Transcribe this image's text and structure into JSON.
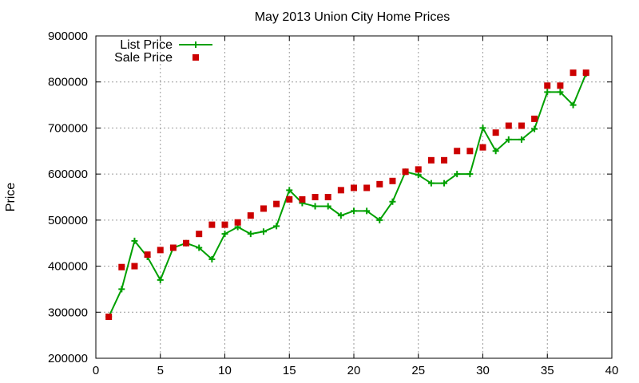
{
  "chart_data": {
    "type": "line",
    "title": "May 2013 Union City Home Prices",
    "xlabel": "",
    "ylabel": "Price",
    "xlim": [
      0,
      40
    ],
    "ylim": [
      200000,
      900000
    ],
    "xticks": [
      0,
      5,
      10,
      15,
      20,
      25,
      30,
      35,
      40
    ],
    "yticks": [
      200000,
      300000,
      400000,
      500000,
      600000,
      700000,
      800000,
      900000
    ],
    "grid": true,
    "legend_position": "top-left",
    "x": [
      1,
      2,
      3,
      4,
      5,
      6,
      7,
      8,
      9,
      10,
      11,
      12,
      13,
      14,
      15,
      16,
      17,
      18,
      19,
      20,
      21,
      22,
      23,
      24,
      25,
      26,
      27,
      28,
      29,
      30,
      31,
      32,
      33,
      34,
      35,
      36,
      37,
      38
    ],
    "series": [
      {
        "name": "List Price",
        "kind": "line",
        "color": "#00a000",
        "values": [
          290000,
          350000,
          455000,
          420000,
          370000,
          440000,
          450000,
          440000,
          415000,
          470000,
          485000,
          470000,
          475000,
          487000,
          565000,
          537000,
          530000,
          530000,
          510000,
          520000,
          520000,
          500000,
          540000,
          605000,
          598000,
          580000,
          580000,
          600000,
          600000,
          700000,
          650000,
          675000,
          675000,
          698000,
          778000,
          778000,
          750000,
          818000
        ]
      },
      {
        "name": "Sale Price",
        "kind": "scatter",
        "color": "#cc0000",
        "values": [
          290000,
          398000,
          400000,
          425000,
          435000,
          440000,
          450000,
          470000,
          490000,
          490000,
          495000,
          510000,
          525000,
          535000,
          545000,
          545000,
          550000,
          550000,
          565000,
          570000,
          570000,
          578000,
          585000,
          605000,
          610000,
          630000,
          630000,
          650000,
          650000,
          658000,
          690000,
          705000,
          705000,
          720000,
          792000,
          792000,
          820000,
          820000
        ]
      }
    ]
  }
}
